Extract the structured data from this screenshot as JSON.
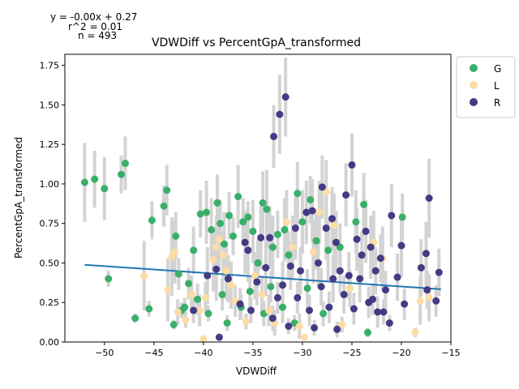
{
  "chart_data": {
    "type": "scatter",
    "title": "VDWDiff vs PercentGpA_transformed",
    "xlabel": "VDWDiff",
    "ylabel": "PercentGpA_transformed",
    "annotation_lines": [
      "y = -0.00x + 0.27",
      "r^2 = 0.01",
      "n = 493"
    ],
    "xlim": [
      -54.0,
      -15.0
    ],
    "ylim": [
      0.0,
      1.82
    ],
    "xticks": [
      -50,
      -45,
      -40,
      -35,
      -30,
      -25,
      -20,
      -15
    ],
    "xtick_labels": [
      "−50",
      "−45",
      "−40",
      "−35",
      "−30",
      "−25",
      "−20",
      "−15"
    ],
    "yticks": [
      0.0,
      0.25,
      0.5,
      0.75,
      1.0,
      1.25,
      1.5,
      1.75
    ],
    "ytick_labels": [
      "0.00",
      "0.25",
      "0.50",
      "0.75",
      "1.00",
      "1.25",
      "1.50",
      "1.75"
    ],
    "grid": false,
    "legend_position": "outside-top-right",
    "fit_line": {
      "slope": -0.0043,
      "intercept": 0.265,
      "x_range": [
        -52.0,
        -16.0
      ],
      "color": "#1f77b4"
    },
    "error_bar_color": "#d3d3d3",
    "series": [
      {
        "name": "G",
        "color": "#3aaf6a",
        "points": [
          {
            "x": -52.0,
            "y": 1.01,
            "e": 0.25
          },
          {
            "x": -51.0,
            "y": 1.03,
            "e": 0.18
          },
          {
            "x": -50.0,
            "y": 0.97,
            "e": 0.2
          },
          {
            "x": -49.6,
            "y": 0.4,
            "e": 0.05
          },
          {
            "x": -48.3,
            "y": 1.06,
            "e": 0.12
          },
          {
            "x": -47.9,
            "y": 1.13,
            "e": 0.17
          },
          {
            "x": -46.9,
            "y": 0.15,
            "e": 0.03
          },
          {
            "x": -45.5,
            "y": 0.21,
            "e": 0.05
          },
          {
            "x": -45.2,
            "y": 0.77,
            "e": 0.12
          },
          {
            "x": -44.0,
            "y": 0.86,
            "e": 0.13
          },
          {
            "x": -43.7,
            "y": 0.96,
            "e": 0.16
          },
          {
            "x": -42.8,
            "y": 0.67,
            "e": 0.15
          },
          {
            "x": -42.5,
            "y": 0.43,
            "e": 0.1
          },
          {
            "x": -42.2,
            "y": 0.2,
            "e": 0.05
          },
          {
            "x": -41.5,
            "y": 0.37,
            "e": 0.1
          },
          {
            "x": -41.0,
            "y": 0.58,
            "e": 0.15
          },
          {
            "x": -40.3,
            "y": 0.81,
            "e": 0.15
          },
          {
            "x": -39.7,
            "y": 0.82,
            "e": 0.2
          },
          {
            "x": -39.2,
            "y": 0.71,
            "e": 0.2
          },
          {
            "x": -38.6,
            "y": 0.88,
            "e": 0.18
          },
          {
            "x": -38.3,
            "y": 0.75,
            "e": 0.15
          },
          {
            "x": -37.9,
            "y": 0.62,
            "e": 0.2
          },
          {
            "x": -37.4,
            "y": 0.8,
            "e": 0.15
          },
          {
            "x": -37.0,
            "y": 0.67,
            "e": 0.12
          },
          {
            "x": -36.5,
            "y": 0.92,
            "e": 0.2
          },
          {
            "x": -36.0,
            "y": 0.76,
            "e": 0.15
          },
          {
            "x": -35.5,
            "y": 0.79,
            "e": 0.1
          },
          {
            "x": -35.0,
            "y": 0.7,
            "e": 0.2
          },
          {
            "x": -34.5,
            "y": 0.5,
            "e": 0.15
          },
          {
            "x": -34.0,
            "y": 0.88,
            "e": 0.2
          },
          {
            "x": -33.6,
            "y": 0.84,
            "e": 0.25
          },
          {
            "x": -33.0,
            "y": 0.6,
            "e": 0.2
          },
          {
            "x": -32.5,
            "y": 0.68,
            "e": 0.15
          },
          {
            "x": -31.8,
            "y": 0.71,
            "e": 0.2
          },
          {
            "x": -31.4,
            "y": 0.55,
            "e": 0.15
          },
          {
            "x": -30.5,
            "y": 0.94,
            "e": 0.2
          },
          {
            "x": -30.0,
            "y": 0.76,
            "e": 0.2
          },
          {
            "x": -29.2,
            "y": 0.9,
            "e": 0.15
          },
          {
            "x": -28.6,
            "y": 0.64,
            "e": 0.18
          },
          {
            "x": -27.4,
            "y": 0.58,
            "e": 0.2
          },
          {
            "x": -26.2,
            "y": 0.6,
            "e": 0.15
          },
          {
            "x": -24.6,
            "y": 0.76,
            "e": 0.2
          },
          {
            "x": -23.8,
            "y": 0.87,
            "e": 0.2
          },
          {
            "x": -19.9,
            "y": 0.79,
            "e": 0.15
          },
          {
            "x": -40.6,
            "y": 0.27,
            "e": 0.1
          },
          {
            "x": -39.5,
            "y": 0.18,
            "e": 0.05
          },
          {
            "x": -38.1,
            "y": 0.3,
            "e": 0.1
          },
          {
            "x": -37.6,
            "y": 0.12,
            "e": 0.05
          },
          {
            "x": -36.2,
            "y": 0.22,
            "e": 0.08
          },
          {
            "x": -35.3,
            "y": 0.32,
            "e": 0.1
          },
          {
            "x": -33.9,
            "y": 0.18,
            "e": 0.08
          },
          {
            "x": -33.2,
            "y": 0.35,
            "e": 0.1
          },
          {
            "x": -32.0,
            "y": 0.22,
            "e": 0.1
          },
          {
            "x": -30.8,
            "y": 0.12,
            "e": 0.05
          },
          {
            "x": -29.5,
            "y": 0.34,
            "e": 0.12
          },
          {
            "x": -27.9,
            "y": 0.18,
            "e": 0.08
          },
          {
            "x": -23.4,
            "y": 0.06,
            "e": 0.03
          },
          {
            "x": -43.0,
            "y": 0.11,
            "e": 0.03
          },
          {
            "x": -41.9,
            "y": 0.22,
            "e": 0.06
          }
        ]
      },
      {
        "name": "L",
        "color": "#fddca5",
        "points": [
          {
            "x": -46.0,
            "y": 0.42,
            "e": 0.22
          },
          {
            "x": -43.6,
            "y": 0.33,
            "e": 0.2
          },
          {
            "x": -43.2,
            "y": 0.54,
            "e": 0.25
          },
          {
            "x": -42.9,
            "y": 0.57,
            "e": 0.2
          },
          {
            "x": -42.6,
            "y": 0.19,
            "e": 0.08
          },
          {
            "x": -41.8,
            "y": 0.14,
            "e": 0.05
          },
          {
            "x": -41.2,
            "y": 0.3,
            "e": 0.12
          },
          {
            "x": -40.4,
            "y": 0.2,
            "e": 0.1
          },
          {
            "x": -40.0,
            "y": 0.02,
            "e": 0.02
          },
          {
            "x": -39.8,
            "y": 0.28,
            "e": 0.1
          },
          {
            "x": -39.0,
            "y": 0.52,
            "e": 0.2
          },
          {
            "x": -38.7,
            "y": 0.6,
            "e": 0.2
          },
          {
            "x": -38.4,
            "y": 0.65,
            "e": 0.2
          },
          {
            "x": -38.0,
            "y": 0.55,
            "e": 0.15
          },
          {
            "x": -37.7,
            "y": 0.45,
            "e": 0.18
          },
          {
            "x": -37.2,
            "y": 0.36,
            "e": 0.15
          },
          {
            "x": -36.8,
            "y": 0.26,
            "e": 0.1
          },
          {
            "x": -35.7,
            "y": 0.13,
            "e": 0.05
          },
          {
            "x": -34.8,
            "y": 0.42,
            "e": 0.15
          },
          {
            "x": -34.1,
            "y": 0.3,
            "e": 0.12
          },
          {
            "x": -33.4,
            "y": 0.2,
            "e": 0.1
          },
          {
            "x": -32.8,
            "y": 0.12,
            "e": 0.08
          },
          {
            "x": -31.6,
            "y": 0.76,
            "e": 0.2
          },
          {
            "x": -31.0,
            "y": 0.6,
            "e": 0.2
          },
          {
            "x": -30.3,
            "y": 0.1,
            "e": 0.08
          },
          {
            "x": -29.8,
            "y": 0.03,
            "e": 0.02
          },
          {
            "x": -28.9,
            "y": 0.57,
            "e": 0.2
          },
          {
            "x": -28.3,
            "y": 0.82,
            "e": 0.2
          },
          {
            "x": -27.6,
            "y": 0.95,
            "e": 0.2
          },
          {
            "x": -26.8,
            "y": 0.74,
            "e": 0.2
          },
          {
            "x": -26.0,
            "y": 0.11,
            "e": 0.05
          },
          {
            "x": -25.2,
            "y": 0.34,
            "e": 0.12
          },
          {
            "x": -22.8,
            "y": 0.63,
            "e": 0.2
          },
          {
            "x": -21.9,
            "y": 0.53,
            "e": 0.2
          },
          {
            "x": -18.6,
            "y": 0.06,
            "e": 0.03
          },
          {
            "x": -18.1,
            "y": 0.26,
            "e": 0.15
          },
          {
            "x": -17.2,
            "y": 0.28,
            "e": 0.15
          }
        ]
      },
      {
        "name": "R",
        "color": "#453a84",
        "points": [
          {
            "x": -41.0,
            "y": 0.2,
            "e": 0.08
          },
          {
            "x": -39.6,
            "y": 0.42,
            "e": 0.18
          },
          {
            "x": -38.7,
            "y": 0.46,
            "e": 0.2
          },
          {
            "x": -38.4,
            "y": 0.03,
            "e": 0.02
          },
          {
            "x": -37.5,
            "y": 0.4,
            "e": 0.15
          },
          {
            "x": -35.8,
            "y": 0.63,
            "e": 0.2
          },
          {
            "x": -35.5,
            "y": 0.58,
            "e": 0.2
          },
          {
            "x": -35.2,
            "y": 0.2,
            "e": 0.08
          },
          {
            "x": -34.6,
            "y": 0.38,
            "e": 0.15
          },
          {
            "x": -34.2,
            "y": 0.66,
            "e": 0.2
          },
          {
            "x": -33.7,
            "y": 0.47,
            "e": 0.18
          },
          {
            "x": -33.3,
            "y": 0.66,
            "e": 0.2
          },
          {
            "x": -32.9,
            "y": 1.3,
            "e": 0.2
          },
          {
            "x": -32.3,
            "y": 1.44,
            "e": 0.25
          },
          {
            "x": -31.7,
            "y": 1.55,
            "e": 0.25
          },
          {
            "x": -32.0,
            "y": 0.36,
            "e": 0.15
          },
          {
            "x": -31.2,
            "y": 0.48,
            "e": 0.15
          },
          {
            "x": -30.7,
            "y": 0.72,
            "e": 0.2
          },
          {
            "x": -30.2,
            "y": 0.45,
            "e": 0.15
          },
          {
            "x": -29.6,
            "y": 0.82,
            "e": 0.2
          },
          {
            "x": -29.0,
            "y": 0.83,
            "e": 0.2
          },
          {
            "x": -28.4,
            "y": 0.5,
            "e": 0.15
          },
          {
            "x": -28.0,
            "y": 0.98,
            "e": 0.2
          },
          {
            "x": -27.6,
            "y": 0.72,
            "e": 0.2
          },
          {
            "x": -27.0,
            "y": 0.78,
            "e": 0.2
          },
          {
            "x": -26.6,
            "y": 0.63,
            "e": 0.2
          },
          {
            "x": -26.2,
            "y": 0.45,
            "e": 0.15
          },
          {
            "x": -25.6,
            "y": 0.93,
            "e": 0.2
          },
          {
            "x": -25.0,
            "y": 1.12,
            "e": 0.2
          },
          {
            "x": -24.5,
            "y": 0.65,
            "e": 0.2
          },
          {
            "x": -24.0,
            "y": 0.55,
            "e": 0.15
          },
          {
            "x": -23.6,
            "y": 0.7,
            "e": 0.2
          },
          {
            "x": -23.1,
            "y": 0.6,
            "e": 0.2
          },
          {
            "x": -22.6,
            "y": 0.45,
            "e": 0.15
          },
          {
            "x": -22.1,
            "y": 0.53,
            "e": 0.15
          },
          {
            "x": -21.6,
            "y": 0.33,
            "e": 0.12
          },
          {
            "x": -21.0,
            "y": 0.8,
            "e": 0.2
          },
          {
            "x": -20.4,
            "y": 0.41,
            "e": 0.15
          },
          {
            "x": -20.0,
            "y": 0.61,
            "e": 0.2
          },
          {
            "x": -19.7,
            "y": 0.24,
            "e": 0.1
          },
          {
            "x": -18.0,
            "y": 0.47,
            "e": 0.18
          },
          {
            "x": -17.5,
            "y": 0.56,
            "e": 0.2
          },
          {
            "x": -17.2,
            "y": 0.91,
            "e": 0.25
          },
          {
            "x": -16.5,
            "y": 0.26,
            "e": 0.1
          },
          {
            "x": -16.2,
            "y": 0.44,
            "e": 0.15
          },
          {
            "x": -17.4,
            "y": 0.33,
            "e": 0.12
          },
          {
            "x": -30.5,
            "y": 0.28,
            "e": 0.1
          },
          {
            "x": -29.3,
            "y": 0.2,
            "e": 0.1
          },
          {
            "x": -28.1,
            "y": 0.35,
            "e": 0.12
          },
          {
            "x": -27.3,
            "y": 0.22,
            "e": 0.1
          },
          {
            "x": -26.5,
            "y": 0.08,
            "e": 0.05
          },
          {
            "x": -25.8,
            "y": 0.3,
            "e": 0.12
          },
          {
            "x": -24.8,
            "y": 0.21,
            "e": 0.1
          },
          {
            "x": -24.2,
            "y": 0.4,
            "e": 0.15
          },
          {
            "x": -23.3,
            "y": 0.25,
            "e": 0.1
          },
          {
            "x": -22.4,
            "y": 0.19,
            "e": 0.1
          },
          {
            "x": -21.8,
            "y": 0.19,
            "e": 0.08
          },
          {
            "x": -21.2,
            "y": 0.12,
            "e": 0.05
          },
          {
            "x": -33.0,
            "y": 0.15,
            "e": 0.08
          },
          {
            "x": -32.5,
            "y": 0.28,
            "e": 0.1
          },
          {
            "x": -31.4,
            "y": 0.1,
            "e": 0.05
          },
          {
            "x": -36.3,
            "y": 0.24,
            "e": 0.1
          },
          {
            "x": -28.8,
            "y": 0.09,
            "e": 0.05
          },
          {
            "x": -26.9,
            "y": 0.4,
            "e": 0.15
          },
          {
            "x": -25.3,
            "y": 0.42,
            "e": 0.15
          },
          {
            "x": -22.9,
            "y": 0.27,
            "e": 0.1
          }
        ]
      }
    ]
  }
}
